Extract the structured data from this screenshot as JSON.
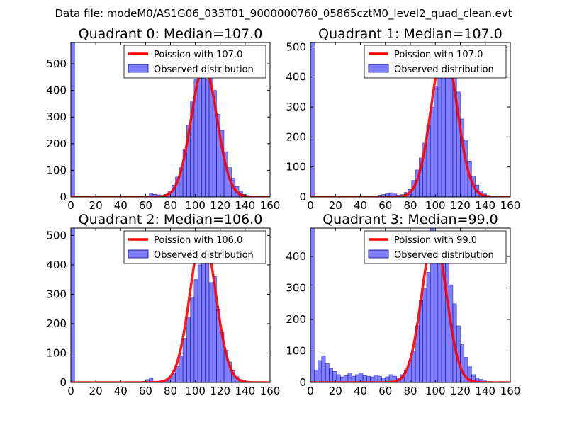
{
  "figure": {
    "suptitle": "Data file: modeM0/AS1G06_033T01_9000000760_05865cztM0_level2_quad_clean.evt"
  },
  "chart_data": [
    {
      "type": "bar",
      "title": "Quadrant 0: Median=107.0",
      "median": 107.0,
      "xlim": [
        0,
        160
      ],
      "ylim": [
        0,
        580
      ],
      "xticks": [
        0,
        20,
        40,
        60,
        80,
        100,
        120,
        140,
        160
      ],
      "yticks": [
        0,
        100,
        200,
        300,
        400,
        500
      ],
      "bin_width": 3,
      "hist_color": "#0000ff",
      "curve_color": "#ff0000",
      "legend": {
        "position": "top-right",
        "curve_label": "Poission with 107.0",
        "hist_label": "Observed distribution"
      },
      "hist_x": [
        0,
        54,
        57,
        60,
        63,
        66,
        69,
        72,
        75,
        78,
        81,
        84,
        87,
        90,
        93,
        96,
        99,
        102,
        105,
        108,
        111,
        114,
        117,
        120,
        123,
        126,
        129,
        132,
        135,
        138,
        141,
        144
      ],
      "hist_y": [
        580,
        2,
        4,
        3,
        14,
        10,
        8,
        6,
        10,
        20,
        45,
        75,
        110,
        180,
        270,
        360,
        440,
        480,
        490,
        440,
        505,
        400,
        310,
        250,
        170,
        110,
        70,
        40,
        22,
        10,
        4,
        2
      ],
      "curve_peak": 490
    },
    {
      "type": "bar",
      "title": "Quadrant 1: Median=107.0",
      "median": 107.0,
      "xlim": [
        0,
        160
      ],
      "ylim": [
        0,
        515
      ],
      "xticks": [
        0,
        20,
        40,
        60,
        80,
        100,
        120,
        140,
        160
      ],
      "yticks": [
        0,
        100,
        200,
        300,
        400,
        500
      ],
      "bin_width": 3,
      "hist_color": "#0000ff",
      "curve_color": "#ff0000",
      "legend": {
        "position": "top-right",
        "curve_label": "Poission with 107.0",
        "hist_label": "Observed distribution"
      },
      "hist_x": [
        0,
        51,
        54,
        57,
        60,
        63,
        66,
        69,
        72,
        75,
        78,
        81,
        84,
        87,
        90,
        93,
        96,
        99,
        102,
        105,
        108,
        111,
        114,
        117,
        120,
        123,
        126,
        129,
        132,
        135,
        138,
        141,
        144
      ],
      "hist_y": [
        515,
        3,
        6,
        8,
        12,
        14,
        10,
        6,
        8,
        15,
        25,
        55,
        90,
        130,
        180,
        240,
        300,
        370,
        420,
        460,
        420,
        500,
        440,
        350,
        260,
        190,
        120,
        70,
        40,
        20,
        10,
        5,
        2
      ],
      "curve_peak": 495
    },
    {
      "type": "bar",
      "title": "Quadrant 2: Median=106.0",
      "median": 106.0,
      "xlim": [
        0,
        160
      ],
      "ylim": [
        0,
        525
      ],
      "xticks": [
        0,
        20,
        40,
        60,
        80,
        100,
        120,
        140,
        160
      ],
      "yticks": [
        0,
        100,
        200,
        300,
        400,
        500
      ],
      "bin_width": 3,
      "hist_color": "#0000ff",
      "curve_color": "#ff0000",
      "legend": {
        "position": "top-right",
        "curve_label": "Poission with 106.0",
        "hist_label": "Observed distribution"
      },
      "hist_x": [
        0,
        57,
        60,
        63,
        66,
        69,
        72,
        75,
        78,
        81,
        84,
        87,
        90,
        93,
        96,
        99,
        102,
        105,
        108,
        111,
        114,
        117,
        120,
        123,
        126,
        129,
        132,
        135,
        138,
        141,
        144
      ],
      "hist_y": [
        525,
        4,
        10,
        16,
        2,
        3,
        5,
        8,
        14,
        30,
        55,
        90,
        150,
        220,
        290,
        350,
        400,
        420,
        420,
        340,
        360,
        250,
        170,
        110,
        70,
        40,
        20,
        10,
        5,
        2,
        1
      ],
      "curve_peak": 505
    },
    {
      "type": "bar",
      "title": "Quadrant 3: Median=99.0",
      "median": 99.0,
      "xlim": [
        0,
        160
      ],
      "ylim": [
        0,
        490
      ],
      "xticks": [
        0,
        20,
        40,
        60,
        80,
        100,
        120,
        140,
        160
      ],
      "yticks": [
        0,
        100,
        200,
        300,
        400
      ],
      "bin_width": 3,
      "hist_color": "#0000ff",
      "curve_color": "#ff0000",
      "legend": {
        "position": "top-right",
        "curve_label": "Poission with 99.0",
        "hist_label": "Observed distribution"
      },
      "hist_x": [
        0,
        3,
        6,
        9,
        12,
        15,
        18,
        21,
        24,
        27,
        30,
        33,
        36,
        39,
        42,
        45,
        48,
        51,
        54,
        57,
        60,
        63,
        66,
        69,
        72,
        75,
        78,
        81,
        84,
        87,
        90,
        93,
        96,
        99,
        102,
        105,
        108,
        111,
        114,
        117,
        120,
        123,
        126,
        129,
        132,
        135,
        138,
        141,
        144
      ],
      "hist_y": [
        490,
        40,
        70,
        85,
        60,
        45,
        35,
        25,
        18,
        22,
        30,
        20,
        25,
        30,
        22,
        20,
        18,
        24,
        20,
        15,
        18,
        25,
        20,
        15,
        25,
        40,
        70,
        100,
        180,
        260,
        300,
        350,
        490,
        420,
        380,
        480,
        380,
        310,
        250,
        180,
        120,
        80,
        50,
        25,
        15,
        10,
        5,
        3,
        2
      ],
      "curve_peak": 460
    }
  ]
}
